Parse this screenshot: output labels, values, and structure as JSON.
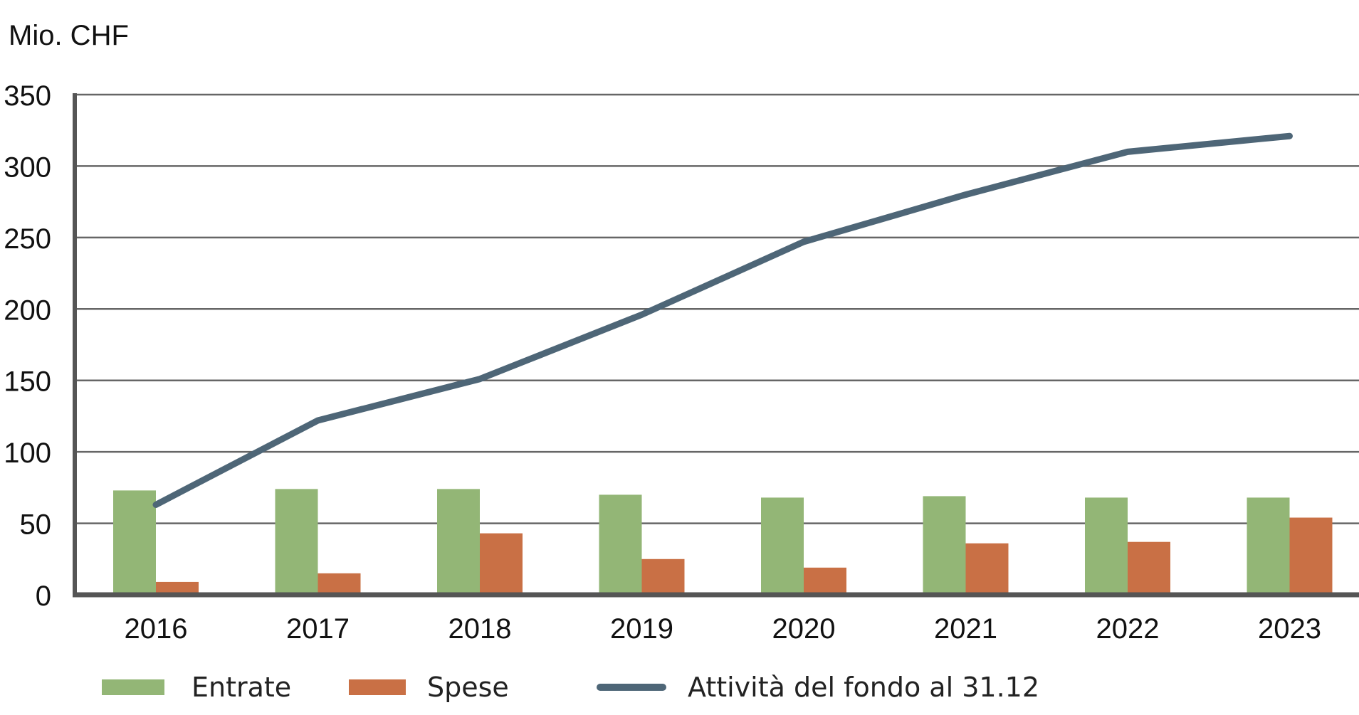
{
  "unit_label": "Mio. CHF",
  "colors": {
    "entrate": "#93b676",
    "spese": "#c97045",
    "attivita": "#4e6677",
    "grid": "#666666",
    "axis": "#555555"
  },
  "legend": {
    "entrate": "Entrate",
    "spese": "Spese",
    "attivita": "Attività del fondo al 31.12"
  },
  "chart_data": {
    "type": "bar",
    "categories": [
      "2016",
      "2017",
      "2018",
      "2019",
      "2020",
      "2021",
      "2022",
      "2023"
    ],
    "series": [
      {
        "name": "Entrate",
        "type": "bar",
        "values": [
          73,
          74,
          74,
          70,
          68,
          69,
          68,
          68
        ]
      },
      {
        "name": "Spese",
        "type": "bar",
        "values": [
          9,
          15,
          43,
          25,
          19,
          36,
          37,
          54
        ]
      },
      {
        "name": "Attività del fondo al 31.12",
        "type": "line",
        "values": [
          63,
          122,
          151,
          196,
          247,
          280,
          310,
          321
        ]
      }
    ],
    "ylabel": "Mio. CHF",
    "ylim": [
      0,
      350
    ],
    "yticks": [
      0,
      50,
      100,
      150,
      200,
      250,
      300,
      350
    ],
    "grid": true,
    "legend_position": "bottom"
  }
}
